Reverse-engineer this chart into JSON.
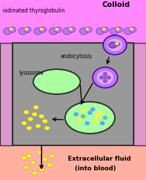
{
  "bg_pink": "#FF88FF",
  "bg_gray": "#999999",
  "bg_flesh": "#FFB0A0",
  "wall_color": "#CC88CC",
  "colloid_text": "Colloid",
  "iodinated_text": "iodinated thyroglobulin",
  "endocytosis_text": "endocytosis",
  "lysosome_text": "lysosome",
  "extracellular_text": "Extracellular fluid",
  "into_blood_text": "(into blood)",
  "purple_outer": "#BB77EE",
  "purple_inner": "#9955CC",
  "purple_dark": "#7744AA",
  "green_light": "#AAFFA0",
  "yellow_dot": "#FFEE44",
  "blue_dot": "#55AAFF",
  "teal_dot": "#55CCAA",
  "fig_w": 2.11,
  "fig_h": 2.6,
  "dpi": 100
}
